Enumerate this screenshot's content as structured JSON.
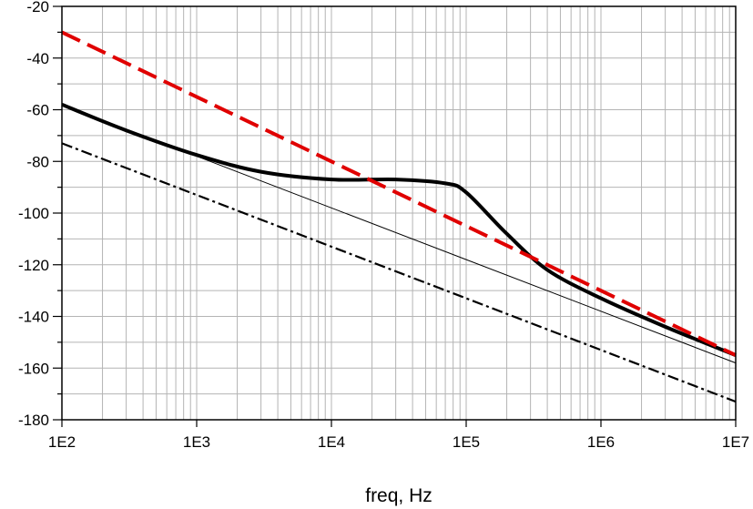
{
  "chart_data": {
    "type": "line",
    "title": "",
    "xlabel": "freq, Hz",
    "ylabel": "",
    "x_scale": "log",
    "xlim": [
      100,
      10000000
    ],
    "ylim": [
      -180,
      -20
    ],
    "grid": true,
    "x_ticks": [
      "1E2",
      "1E3",
      "1E4",
      "1E5",
      "1E6",
      "1E7"
    ],
    "y_ticks": [
      "-20",
      "-40",
      "-60",
      "-80",
      "-100",
      "-120",
      "-140",
      "-160",
      "-180"
    ],
    "colors": {
      "black": "#000000",
      "red": "#e00000",
      "grid": "#b4b4b4"
    },
    "series": [
      {
        "style": "solid-thick",
        "color": "#000000",
        "x": [
          100,
          300,
          1000,
          3000,
          10000,
          30000,
          70000,
          100000,
          200000,
          400000,
          1000000,
          3000000,
          10000000
        ],
        "y": [
          -58,
          -68,
          -77.5,
          -84,
          -87,
          -87,
          -88.5,
          -92,
          -108,
          -122,
          -133,
          -144,
          -155
        ]
      },
      {
        "style": "solid-thin",
        "color": "#000000",
        "x": [
          100,
          10000000
        ],
        "y": [
          -58,
          -158
        ]
      },
      {
        "style": "dashed-thick",
        "color": "#e00000",
        "x": [
          100,
          10000000
        ],
        "y": [
          -30,
          -155
        ]
      },
      {
        "style": "dashdot",
        "color": "#000000",
        "x": [
          100,
          10000000
        ],
        "y": [
          -73,
          -173
        ]
      }
    ]
  }
}
